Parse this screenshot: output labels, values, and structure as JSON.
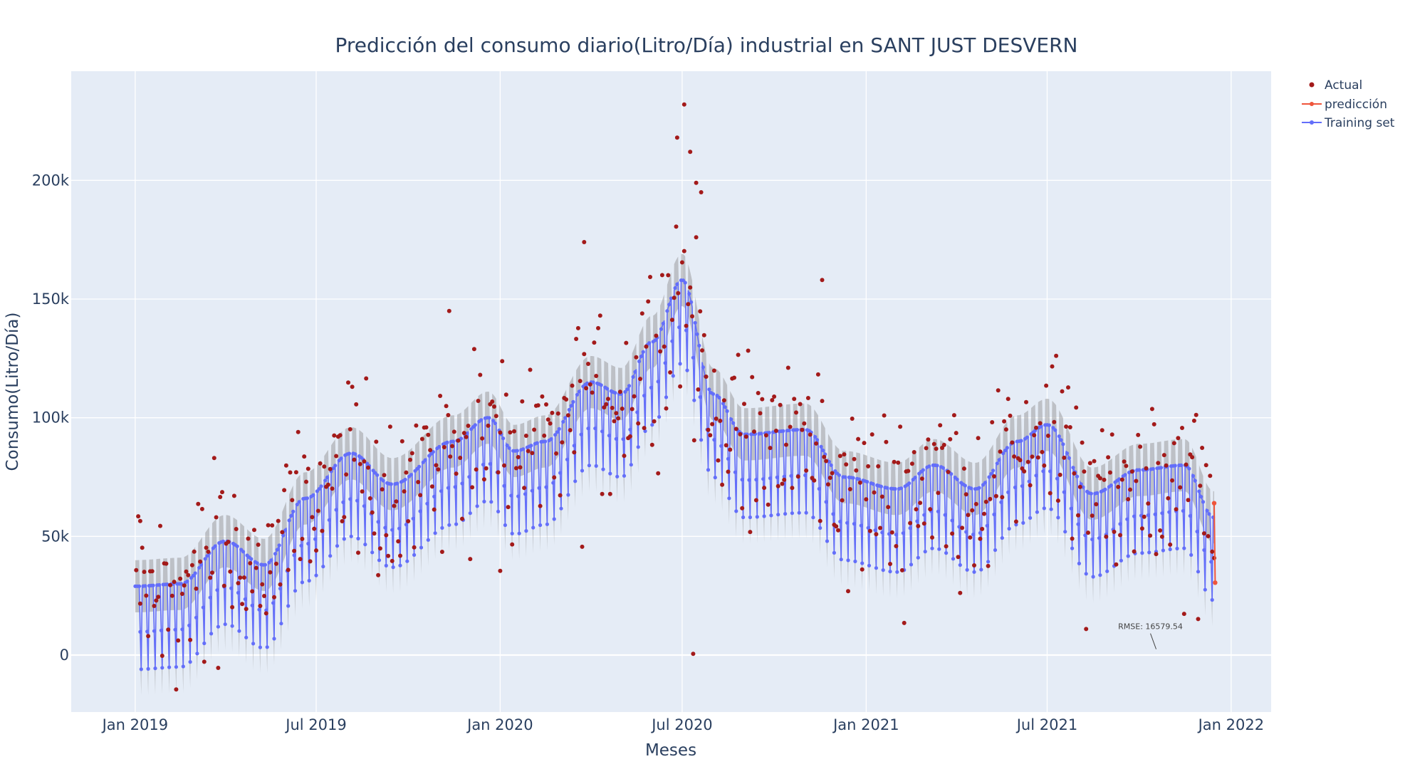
{
  "chart_data": {
    "type": "scatter",
    "title": "Predicción del consumo diario(Litro/Día) industrial en SANT JUST DESVERN",
    "xlabel": "Meses",
    "ylabel": "Consumo(Litro/Día)",
    "x_range": [
      "2018-10-29",
      "2022-02-10"
    ],
    "ylim": [
      -24000,
      246000
    ],
    "x_ticks": [
      {
        "date": "2019-01-01",
        "label": "Jan 2019"
      },
      {
        "date": "2019-07-01",
        "label": "Jul 2019"
      },
      {
        "date": "2020-01-01",
        "label": "Jan 2020"
      },
      {
        "date": "2020-07-01",
        "label": "Jul 2020"
      },
      {
        "date": "2021-01-01",
        "label": "Jan 2021"
      },
      {
        "date": "2021-07-01",
        "label": "Jul 2021"
      },
      {
        "date": "2022-01-01",
        "label": "Jan 2022"
      }
    ],
    "y_ticks": [
      {
        "value": 0,
        "label": "0"
      },
      {
        "value": 50000,
        "label": "50k"
      },
      {
        "value": 100000,
        "label": "100k"
      },
      {
        "value": 150000,
        "label": "150k"
      },
      {
        "value": 200000,
        "label": "200k"
      }
    ],
    "grid": true,
    "legend_position": "top-right",
    "series": [
      {
        "name": "Actual",
        "mode": "markers",
        "color": "#a31a1a"
      },
      {
        "name": "predicción",
        "mode": "lines+markers",
        "color": "#ef553b",
        "points": [
          {
            "date": "2021-12-15",
            "value": 64000
          },
          {
            "date": "2021-12-16",
            "value": 30500
          }
        ]
      },
      {
        "name": "Training set",
        "mode": "lines+markers",
        "color": "#636efa"
      }
    ],
    "training_start": "2019-01-01",
    "training_end": "2021-12-15",
    "training_trend_knots": [
      {
        "date": "2019-01-01",
        "value": 29000
      },
      {
        "date": "2019-02-15",
        "value": 30000
      },
      {
        "date": "2019-04-01",
        "value": 48000
      },
      {
        "date": "2019-05-10",
        "value": 38000
      },
      {
        "date": "2019-06-20",
        "value": 66000
      },
      {
        "date": "2019-08-05",
        "value": 85000
      },
      {
        "date": "2019-09-15",
        "value": 72000
      },
      {
        "date": "2019-11-15",
        "value": 90000
      },
      {
        "date": "2019-12-20",
        "value": 100000
      },
      {
        "date": "2020-01-15",
        "value": 86000
      },
      {
        "date": "2020-02-15",
        "value": 90000
      },
      {
        "date": "2020-04-01",
        "value": 115000
      },
      {
        "date": "2020-05-01",
        "value": 110000
      },
      {
        "date": "2020-06-01",
        "value": 132000
      },
      {
        "date": "2020-07-01",
        "value": 158000
      },
      {
        "date": "2020-08-01",
        "value": 110000
      },
      {
        "date": "2020-09-01",
        "value": 93000
      },
      {
        "date": "2020-11-01",
        "value": 95000
      },
      {
        "date": "2020-12-10",
        "value": 75000
      },
      {
        "date": "2021-02-01",
        "value": 70000
      },
      {
        "date": "2021-03-10",
        "value": 80000
      },
      {
        "date": "2021-04-20",
        "value": 70000
      },
      {
        "date": "2021-06-01",
        "value": 90000
      },
      {
        "date": "2021-07-01",
        "value": 97000
      },
      {
        "date": "2021-08-15",
        "value": 68000
      },
      {
        "date": "2021-10-01",
        "value": 78000
      },
      {
        "date": "2021-11-15",
        "value": 80000
      },
      {
        "date": "2021-12-15",
        "value": 58000
      }
    ],
    "weekday_dip": 35000,
    "confidence_band_width": 11000,
    "actual_outliers": [
      {
        "date": "2020-06-26",
        "value": 218000
      },
      {
        "date": "2020-07-03",
        "value": 232000
      },
      {
        "date": "2020-07-09",
        "value": 212000
      },
      {
        "date": "2020-07-15",
        "value": 199000
      },
      {
        "date": "2020-07-20",
        "value": 195000
      },
      {
        "date": "2020-07-12",
        "value": 500
      },
      {
        "date": "2020-03-25",
        "value": 174000
      },
      {
        "date": "2019-11-11",
        "value": 145000
      },
      {
        "date": "2020-11-18",
        "value": 158000
      },
      {
        "date": "2019-01-06",
        "value": 56500
      },
      {
        "date": "2020-01-01",
        "value": 35500
      }
    ],
    "annotation": {
      "text": "RMSE: 16579.54",
      "date": "2021-10-18",
      "value": 2500
    }
  }
}
